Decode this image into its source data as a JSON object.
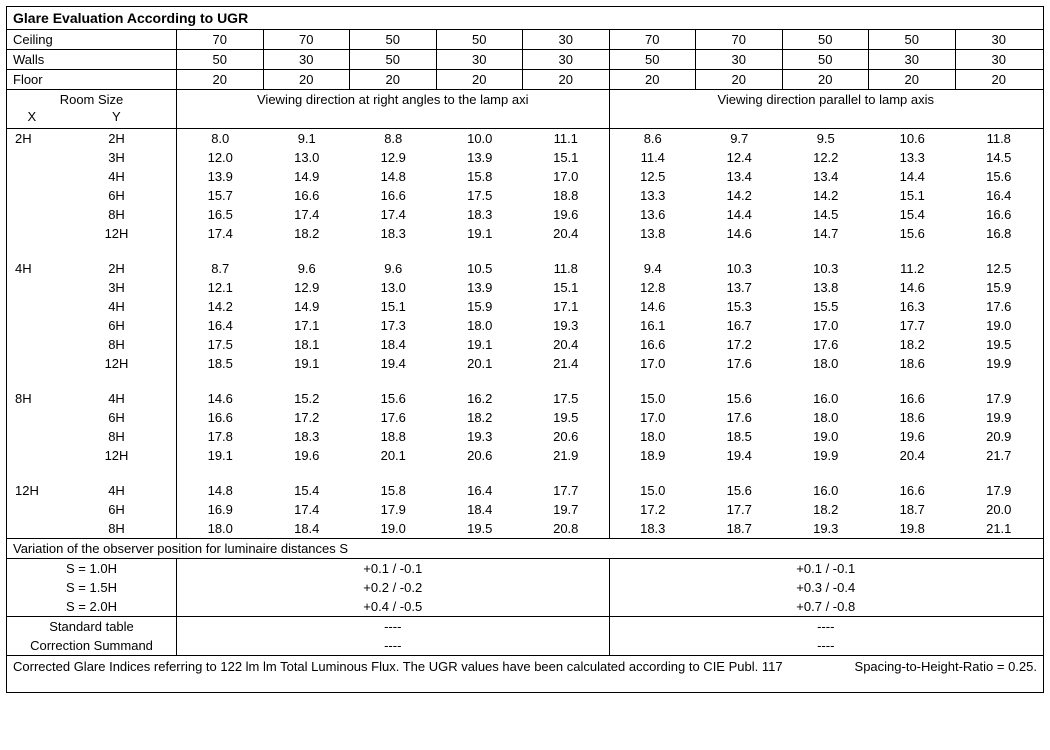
{
  "title": "Glare Evaluation According to UGR",
  "params": [
    {
      "label": "Ceiling",
      "vals": [
        "70",
        "70",
        "50",
        "50",
        "30",
        "70",
        "70",
        "50",
        "50",
        "30"
      ]
    },
    {
      "label": "Walls",
      "vals": [
        "50",
        "30",
        "50",
        "30",
        "30",
        "50",
        "30",
        "50",
        "30",
        "30"
      ]
    },
    {
      "label": "Floor",
      "vals": [
        "20",
        "20",
        "20",
        "20",
        "20",
        "20",
        "20",
        "20",
        "20",
        "20"
      ]
    }
  ],
  "roomsize": "Room Size",
  "x": "X",
  "y": "Y",
  "viewdir_left": "Viewing direction at right angles to the lamp axi",
  "viewdir_right": "Viewing direction parallel to lamp axis",
  "groups": [
    {
      "x": "2H",
      "rows": [
        {
          "y": "2H",
          "v": [
            "8.0",
            "9.1",
            "8.8",
            "10.0",
            "11.1",
            "8.6",
            "9.7",
            "9.5",
            "10.6",
            "11.8"
          ]
        },
        {
          "y": "3H",
          "v": [
            "12.0",
            "13.0",
            "12.9",
            "13.9",
            "15.1",
            "11.4",
            "12.4",
            "12.2",
            "13.3",
            "14.5"
          ]
        },
        {
          "y": "4H",
          "v": [
            "13.9",
            "14.9",
            "14.8",
            "15.8",
            "17.0",
            "12.5",
            "13.4",
            "13.4",
            "14.4",
            "15.6"
          ]
        },
        {
          "y": "6H",
          "v": [
            "15.7",
            "16.6",
            "16.6",
            "17.5",
            "18.8",
            "13.3",
            "14.2",
            "14.2",
            "15.1",
            "16.4"
          ]
        },
        {
          "y": "8H",
          "v": [
            "16.5",
            "17.4",
            "17.4",
            "18.3",
            "19.6",
            "13.6",
            "14.4",
            "14.5",
            "15.4",
            "16.6"
          ]
        },
        {
          "y": "12H",
          "v": [
            "17.4",
            "18.2",
            "18.3",
            "19.1",
            "20.4",
            "13.8",
            "14.6",
            "14.7",
            "15.6",
            "16.8"
          ]
        }
      ]
    },
    {
      "x": "4H",
      "rows": [
        {
          "y": "2H",
          "v": [
            "8.7",
            "9.6",
            "9.6",
            "10.5",
            "11.8",
            "9.4",
            "10.3",
            "10.3",
            "11.2",
            "12.5"
          ]
        },
        {
          "y": "3H",
          "v": [
            "12.1",
            "12.9",
            "13.0",
            "13.9",
            "15.1",
            "12.8",
            "13.7",
            "13.8",
            "14.6",
            "15.9"
          ]
        },
        {
          "y": "4H",
          "v": [
            "14.2",
            "14.9",
            "15.1",
            "15.9",
            "17.1",
            "14.6",
            "15.3",
            "15.5",
            "16.3",
            "17.6"
          ]
        },
        {
          "y": "6H",
          "v": [
            "16.4",
            "17.1",
            "17.3",
            "18.0",
            "19.3",
            "16.1",
            "16.7",
            "17.0",
            "17.7",
            "19.0"
          ]
        },
        {
          "y": "8H",
          "v": [
            "17.5",
            "18.1",
            "18.4",
            "19.1",
            "20.4",
            "16.6",
            "17.2",
            "17.6",
            "18.2",
            "19.5"
          ]
        },
        {
          "y": "12H",
          "v": [
            "18.5",
            "19.1",
            "19.4",
            "20.1",
            "21.4",
            "17.0",
            "17.6",
            "18.0",
            "18.6",
            "19.9"
          ]
        }
      ]
    },
    {
      "x": "8H",
      "rows": [
        {
          "y": "4H",
          "v": [
            "14.6",
            "15.2",
            "15.6",
            "16.2",
            "17.5",
            "15.0",
            "15.6",
            "16.0",
            "16.6",
            "17.9"
          ]
        },
        {
          "y": "6H",
          "v": [
            "16.6",
            "17.2",
            "17.6",
            "18.2",
            "19.5",
            "17.0",
            "17.6",
            "18.0",
            "18.6",
            "19.9"
          ]
        },
        {
          "y": "8H",
          "v": [
            "17.8",
            "18.3",
            "18.8",
            "19.3",
            "20.6",
            "18.0",
            "18.5",
            "19.0",
            "19.6",
            "20.9"
          ]
        },
        {
          "y": "12H",
          "v": [
            "19.1",
            "19.6",
            "20.1",
            "20.6",
            "21.9",
            "18.9",
            "19.4",
            "19.9",
            "20.4",
            "21.7"
          ]
        }
      ]
    },
    {
      "x": "12H",
      "rows": [
        {
          "y": "4H",
          "v": [
            "14.8",
            "15.4",
            "15.8",
            "16.4",
            "17.7",
            "15.0",
            "15.6",
            "16.0",
            "16.6",
            "17.9"
          ]
        },
        {
          "y": "6H",
          "v": [
            "16.9",
            "17.4",
            "17.9",
            "18.4",
            "19.7",
            "17.2",
            "17.7",
            "18.2",
            "18.7",
            "20.0"
          ]
        },
        {
          "y": "8H",
          "v": [
            "18.0",
            "18.4",
            "19.0",
            "19.5",
            "20.8",
            "18.3",
            "18.7",
            "19.3",
            "19.8",
            "21.1"
          ]
        }
      ]
    }
  ],
  "variation_head": "Variation of the observer position for luminaire distances S",
  "variations": [
    {
      "label": "S = 1.0H",
      "left": "+0.1 / -0.1",
      "right": "+0.1 / -0.1"
    },
    {
      "label": "S = 1.5H",
      "left": "+0.2 / -0.2",
      "right": "+0.3 / -0.4"
    },
    {
      "label": "S = 2.0H",
      "left": "+0.4 / -0.5",
      "right": "+0.7 / -0.8"
    }
  ],
  "std_rows": [
    {
      "label": "Standard table",
      "left": "----",
      "right": "----"
    },
    {
      "label": "Correction Summand",
      "left": "----",
      "right": "----"
    }
  ],
  "footer_left": "Corrected Glare Indices referring to 122 lm lm Total Luminous Flux. The UGR values have been calculated according to CIE Publ. 117",
  "footer_right": "Spacing-to-Height-Ratio = 0.25."
}
